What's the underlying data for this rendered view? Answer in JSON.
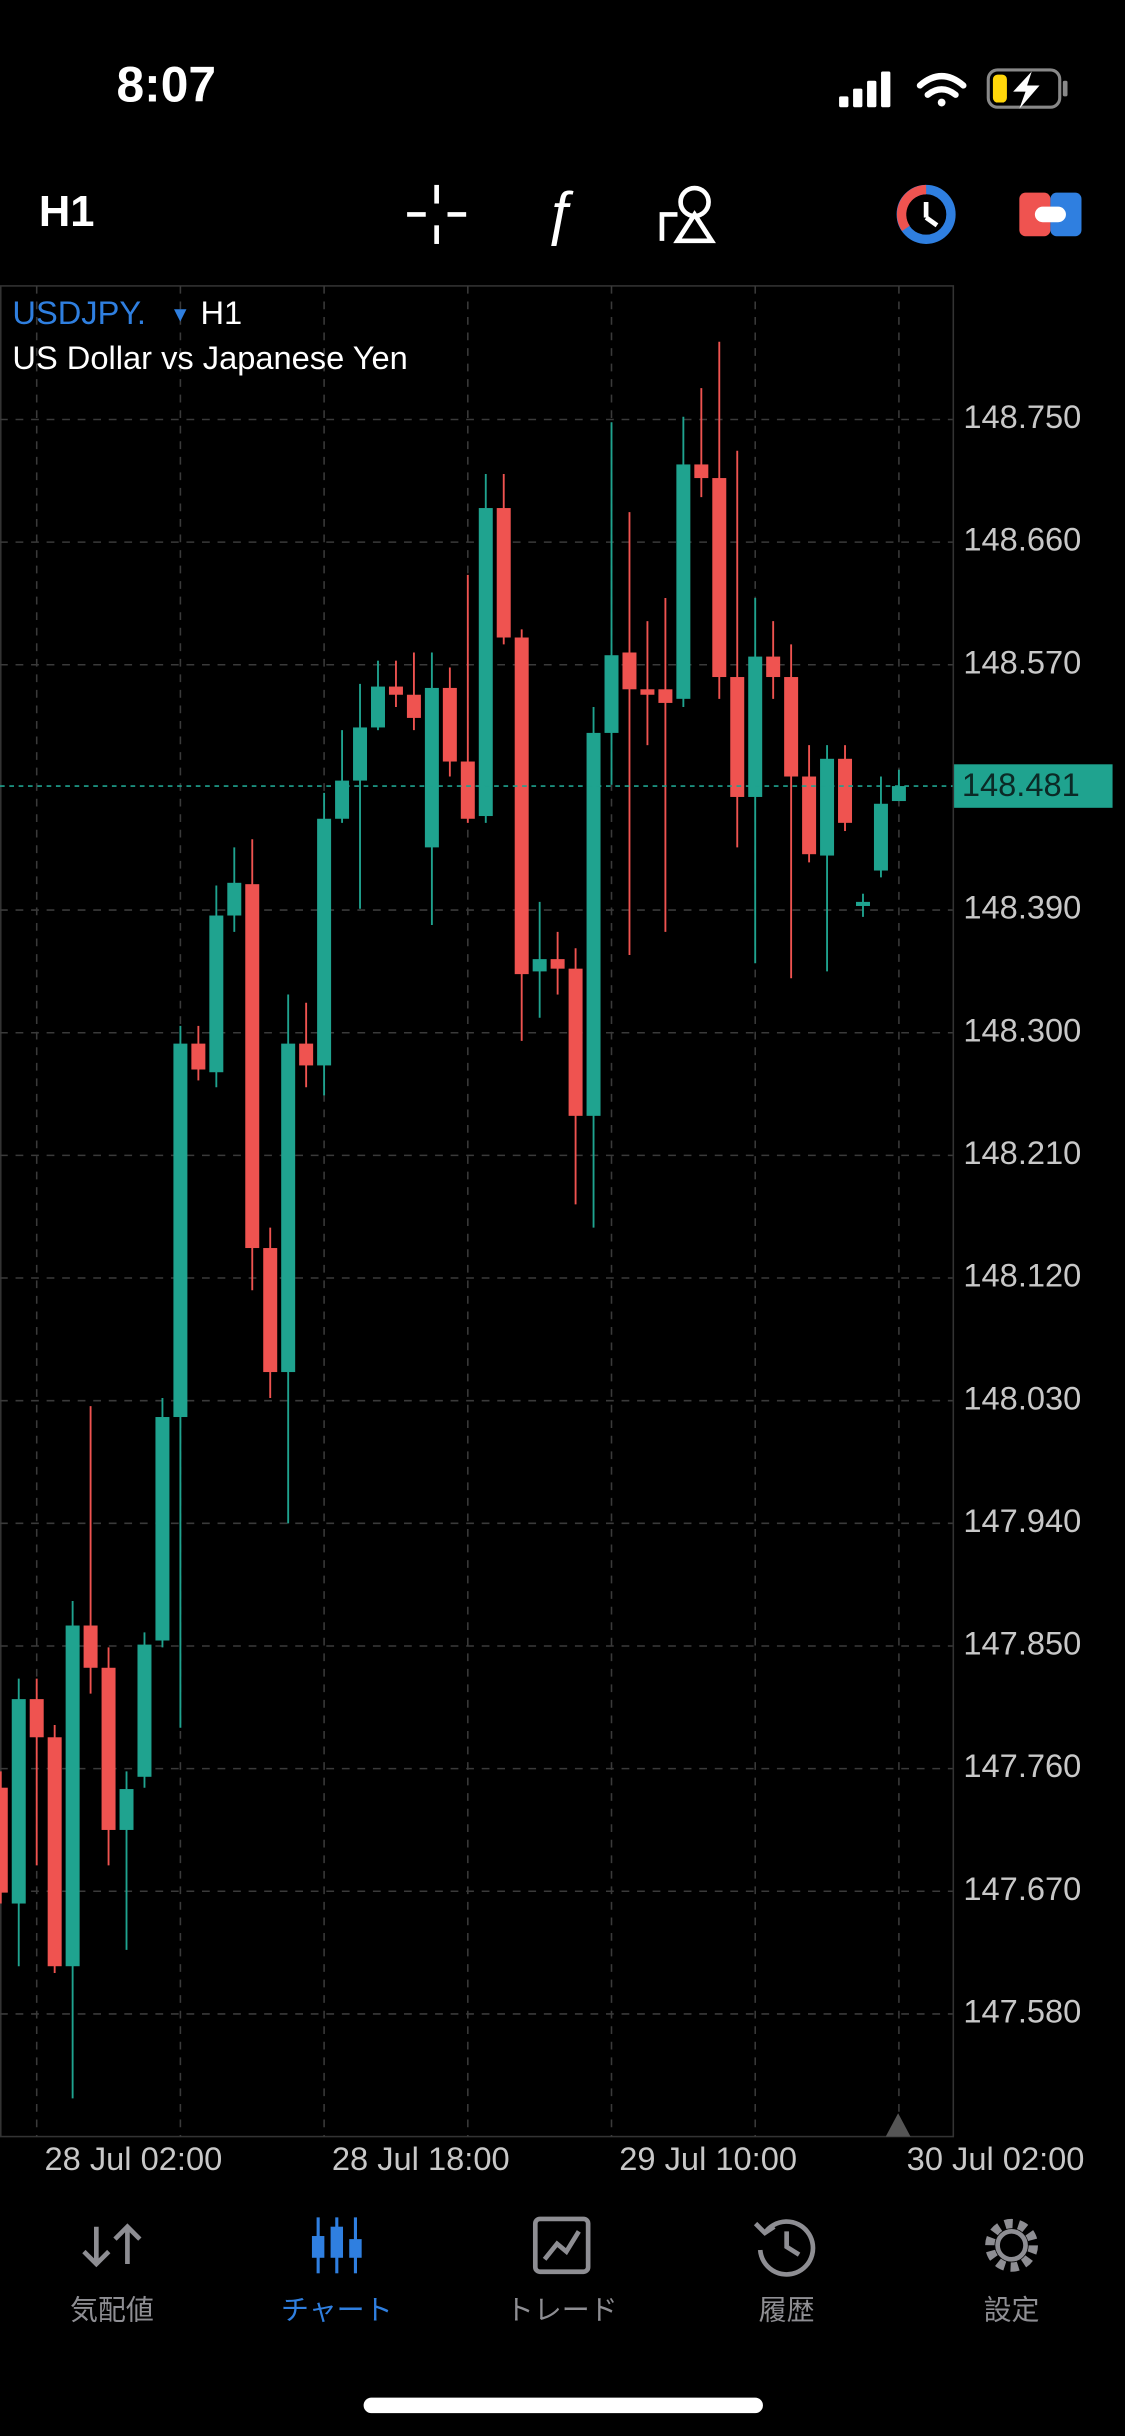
{
  "status_bar": {
    "time": "8:07"
  },
  "toolbar": {
    "timeframe": "H1"
  },
  "chart_data": {
    "type": "candlestick",
    "symbol": "USDJPY.",
    "timeframe": "H1",
    "description": "US Dollar vs Japanese Yen",
    "categories": [
      null,
      null,
      "28 Jul 02:00",
      null,
      null,
      null,
      null,
      null,
      null,
      null,
      null,
      null,
      null,
      null,
      null,
      null,
      null,
      null,
      "28 Jul 18:00",
      null,
      null,
      null,
      null,
      null,
      null,
      null,
      null,
      null,
      null,
      null,
      null,
      null,
      null,
      null,
      "29 Jul 10:00",
      null,
      null,
      null,
      null,
      null,
      null,
      null,
      null,
      null,
      null,
      null,
      null,
      null,
      null,
      null,
      "30 Jul 02:00"
    ],
    "open": [
      147.746,
      147.661,
      147.811,
      147.783,
      147.615,
      147.865,
      147.834,
      147.715,
      147.754,
      147.854,
      148.018,
      148.292,
      148.271,
      148.386,
      148.409,
      148.142,
      148.051,
      148.292,
      148.276,
      148.457,
      148.485,
      148.524,
      148.554,
      148.548,
      148.436,
      148.553,
      148.499,
      148.459,
      148.685,
      148.59,
      148.345,
      148.354,
      148.347,
      148.239,
      148.52,
      148.579,
      148.552,
      148.552,
      148.545,
      148.717,
      148.707,
      148.561,
      148.473,
      148.576,
      148.561,
      148.488,
      148.43,
      148.501,
      148.393,
      148.419,
      148.47
    ],
    "high": [
      147.758,
      147.826,
      147.826,
      147.792,
      147.883,
      148.026,
      147.849,
      147.758,
      147.86,
      148.032,
      148.305,
      148.305,
      148.408,
      148.436,
      148.442,
      148.157,
      148.328,
      148.322,
      148.476,
      148.522,
      148.556,
      148.573,
      148.573,
      148.579,
      148.579,
      148.568,
      148.636,
      148.71,
      148.71,
      148.596,
      148.396,
      148.374,
      148.362,
      148.539,
      148.748,
      148.682,
      148.602,
      148.619,
      148.752,
      148.773,
      148.807,
      148.727,
      148.619,
      148.602,
      148.585,
      148.511,
      148.511,
      148.511,
      148.402,
      148.488,
      148.493
    ],
    "low": [
      147.661,
      147.615,
      147.689,
      147.61,
      147.518,
      147.815,
      147.689,
      147.627,
      147.746,
      147.849,
      147.79,
      148.265,
      148.26,
      148.374,
      148.111,
      148.032,
      147.94,
      148.26,
      148.254,
      148.454,
      148.391,
      148.522,
      148.539,
      148.522,
      148.379,
      148.488,
      148.454,
      148.454,
      148.585,
      148.294,
      148.311,
      148.328,
      148.174,
      148.157,
      148.482,
      148.357,
      148.511,
      148.374,
      148.539,
      148.693,
      148.545,
      148.436,
      148.351,
      148.545,
      148.34,
      148.425,
      148.345,
      148.448,
      148.385,
      148.414,
      148.47
    ],
    "close": [
      147.669,
      147.811,
      147.783,
      147.615,
      147.865,
      147.834,
      147.715,
      147.745,
      147.851,
      148.018,
      148.292,
      148.273,
      148.386,
      148.41,
      148.142,
      148.051,
      148.292,
      148.276,
      148.457,
      148.485,
      148.524,
      148.554,
      148.548,
      148.531,
      148.553,
      148.499,
      148.457,
      148.685,
      148.59,
      148.343,
      148.354,
      148.347,
      148.239,
      148.52,
      148.577,
      148.552,
      148.548,
      148.542,
      148.717,
      148.707,
      148.561,
      148.473,
      148.576,
      148.561,
      148.488,
      148.431,
      148.501,
      148.454,
      148.396,
      148.468,
      148.481
    ],
    "up_color": "#1fa38f",
    "down_color": "#ef5350",
    "ylim": [
      147.49,
      148.848
    ],
    "yticks": [
      {
        "value": 148.75,
        "label": "148.750"
      },
      {
        "value": 148.66,
        "label": "148.660"
      },
      {
        "value": 148.57,
        "label": "148.570"
      },
      {
        "value": 148.39,
        "label": "148.390"
      },
      {
        "value": 148.3,
        "label": "148.300"
      },
      {
        "value": 148.21,
        "label": "148.210"
      },
      {
        "value": 148.12,
        "label": "148.120"
      },
      {
        "value": 148.03,
        "label": "148.030"
      },
      {
        "value": 147.94,
        "label": "147.940"
      },
      {
        "value": 147.85,
        "label": "147.850"
      },
      {
        "value": 147.76,
        "label": "147.760"
      },
      {
        "value": 147.67,
        "label": "147.670"
      },
      {
        "value": 147.58,
        "label": "147.580"
      }
    ],
    "current_price": {
      "value": 148.481,
      "label": "148.481"
    },
    "grid": true
  },
  "tab_bar": {
    "active": 1,
    "tabs": [
      {
        "label": "気配値"
      },
      {
        "label": "チャート"
      },
      {
        "label": "トレード"
      },
      {
        "label": "履歴"
      },
      {
        "label": "設定"
      }
    ]
  }
}
